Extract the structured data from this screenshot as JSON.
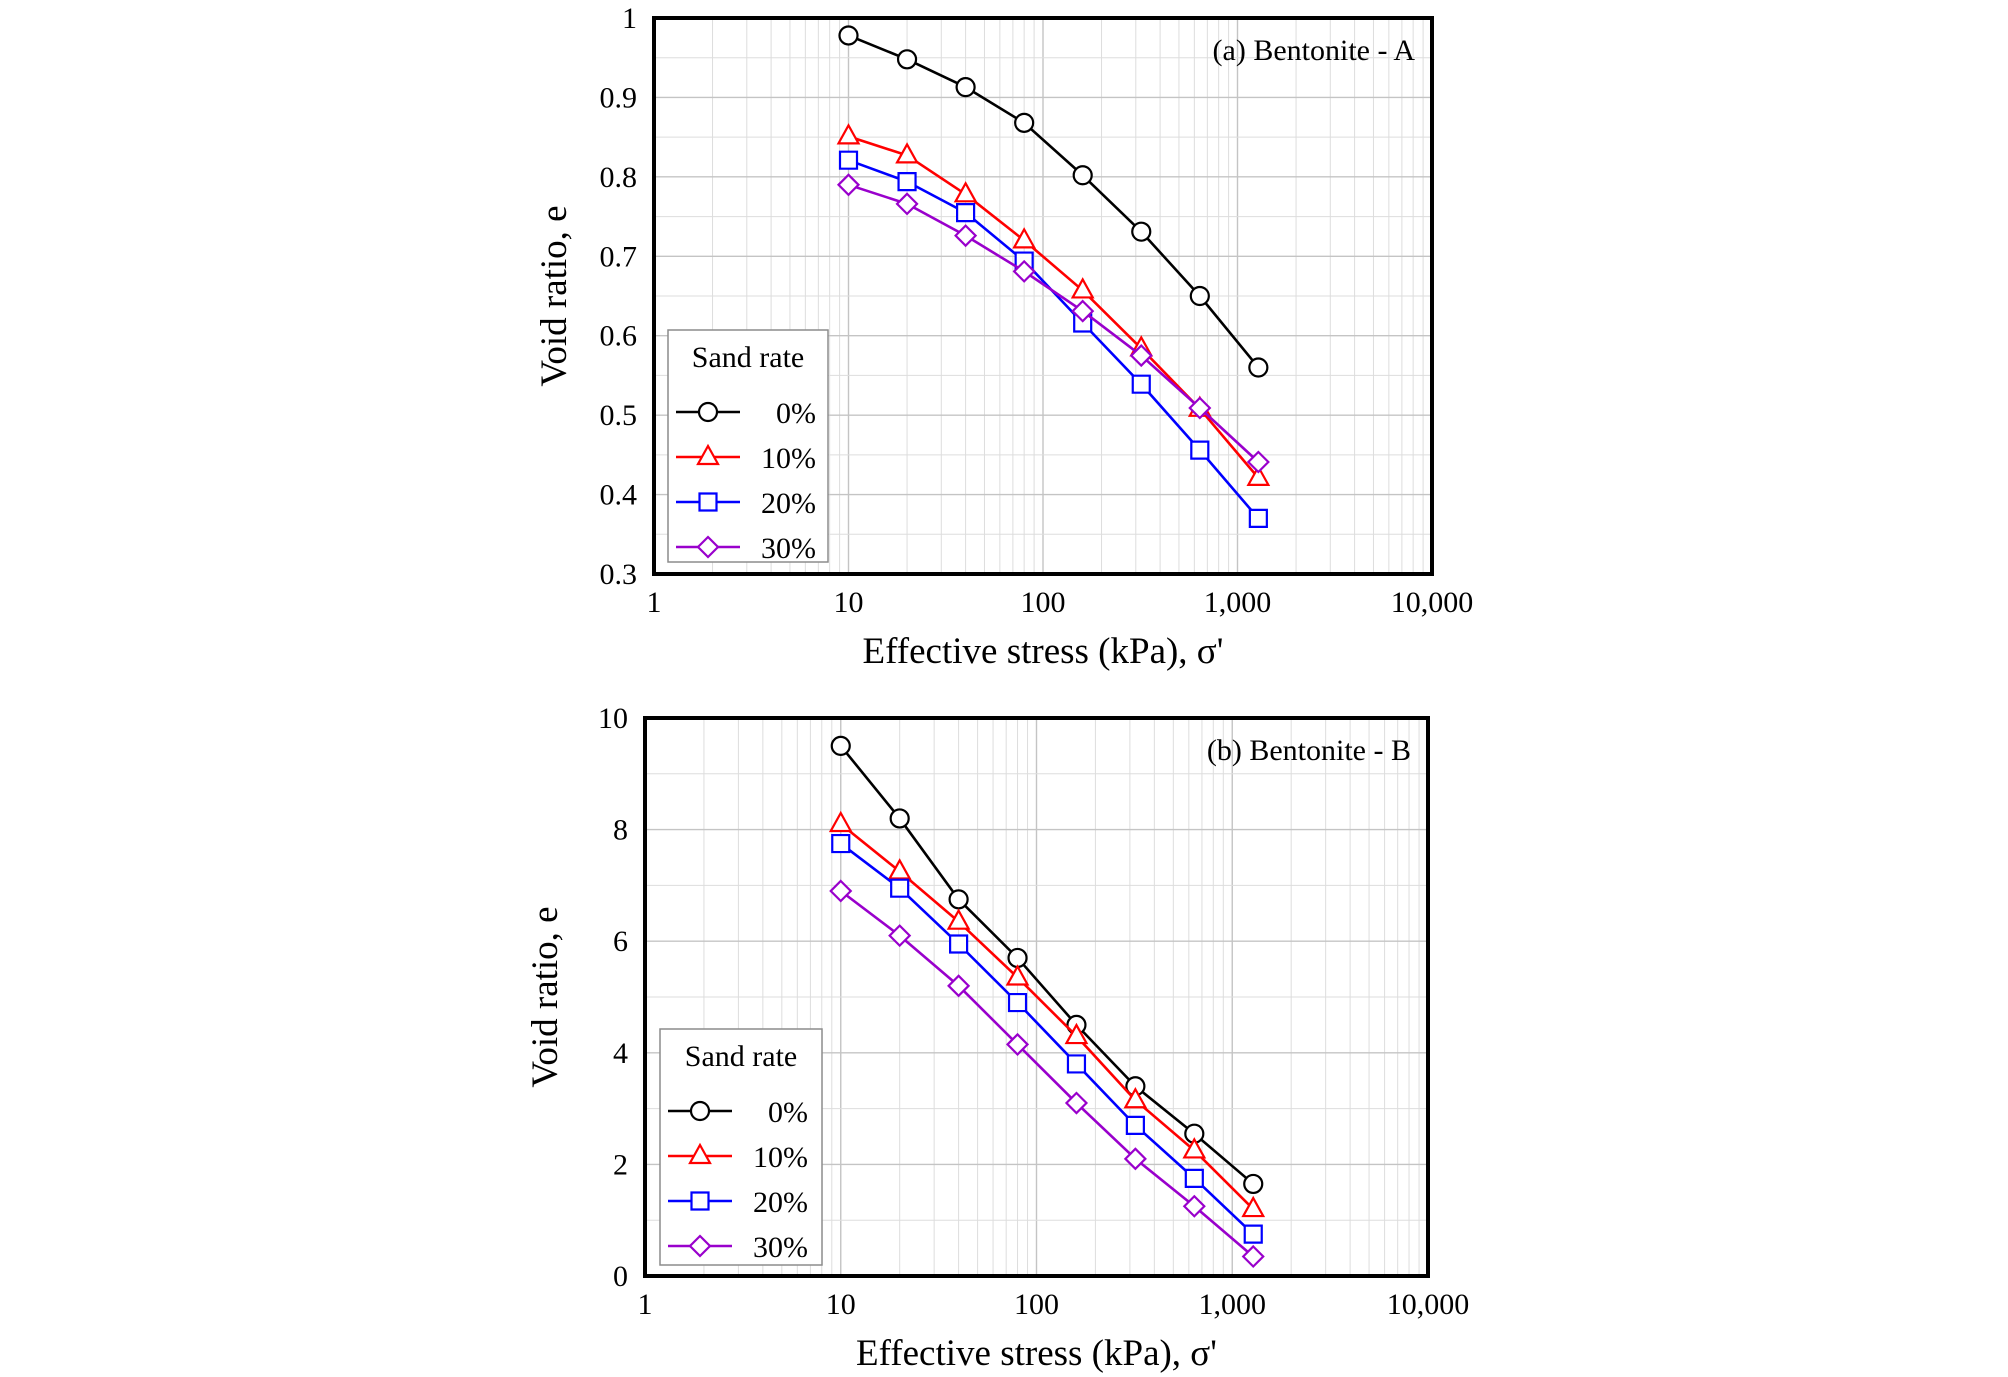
{
  "chart_data": [
    {
      "type": "line",
      "annotation": "(a) Bentonite - A",
      "xlabel": "Effective stress (kPa), σ'",
      "ylabel": "Void ratio, e",
      "xscale": "log",
      "xlim": [
        1,
        10000
      ],
      "ylim": [
        0.3,
        1.0
      ],
      "grid": true,
      "x_ticks": [
        1,
        10,
        100,
        1000,
        10000
      ],
      "x_tick_labels": [
        "1",
        "10",
        "100",
        "1,000",
        "10,000"
      ],
      "y_ticks": [
        0.3,
        0.4,
        0.5,
        0.6,
        0.7,
        0.8,
        0.9,
        1.0
      ],
      "y_tick_labels": [
        "0.3",
        "0.4",
        "0.5",
        "0.6",
        "0.7",
        "0.8",
        "0.9",
        "1"
      ],
      "x": [
        10,
        20,
        40,
        80,
        160,
        320,
        640,
        1280
      ],
      "legend_title": "Sand rate",
      "legend_position": "lower-left",
      "series": [
        {
          "name": "0%",
          "color": "#000000",
          "marker": "circle",
          "values": [
            0.978,
            0.948,
            0.913,
            0.868,
            0.802,
            0.731,
            0.65,
            0.56
          ]
        },
        {
          "name": "10%",
          "color": "#ff0000",
          "marker": "triangle",
          "values": [
            0.851,
            0.827,
            0.778,
            0.72,
            0.657,
            0.584,
            0.508,
            0.421
          ]
        },
        {
          "name": "20%",
          "color": "#0000ff",
          "marker": "square",
          "values": [
            0.821,
            0.794,
            0.755,
            0.694,
            0.616,
            0.539,
            0.456,
            0.37
          ]
        },
        {
          "name": "30%",
          "color": "#9900cc",
          "marker": "diamond",
          "values": [
            0.79,
            0.766,
            0.726,
            0.681,
            0.631,
            0.575,
            0.509,
            0.441
          ]
        }
      ]
    },
    {
      "type": "line",
      "annotation": "(b) Bentonite - B",
      "xlabel": "Effective stress (kPa), σ'",
      "ylabel": "Void ratio, e",
      "xscale": "log",
      "xlim": [
        1,
        10000
      ],
      "ylim": [
        0,
        10
      ],
      "grid": true,
      "x_ticks": [
        1,
        10,
        100,
        1000,
        10000
      ],
      "x_tick_labels": [
        "1",
        "10",
        "100",
        "1,000",
        "10,000"
      ],
      "y_ticks": [
        0,
        2,
        4,
        6,
        8,
        10
      ],
      "y_tick_labels": [
        "0",
        "2",
        "4",
        "6",
        "8",
        "10"
      ],
      "x": [
        10,
        20,
        40,
        80,
        160,
        320,
        640,
        1280
      ],
      "legend_title": "Sand rate",
      "legend_position": "lower-left",
      "series": [
        {
          "name": "0%",
          "color": "#000000",
          "marker": "circle",
          "values": [
            9.5,
            8.2,
            6.75,
            5.7,
            4.5,
            3.4,
            2.55,
            1.65
          ]
        },
        {
          "name": "10%",
          "color": "#ff0000",
          "marker": "triangle",
          "values": [
            8.1,
            7.25,
            6.35,
            5.35,
            4.3,
            3.15,
            2.25,
            1.2
          ]
        },
        {
          "name": "20%",
          "color": "#0000ff",
          "marker": "square",
          "values": [
            7.75,
            6.95,
            5.95,
            4.9,
            3.8,
            2.7,
            1.75,
            0.75
          ]
        },
        {
          "name": "30%",
          "color": "#9900cc",
          "marker": "diamond",
          "values": [
            6.9,
            6.1,
            5.2,
            4.15,
            3.1,
            2.1,
            1.25,
            0.35
          ]
        }
      ]
    }
  ]
}
